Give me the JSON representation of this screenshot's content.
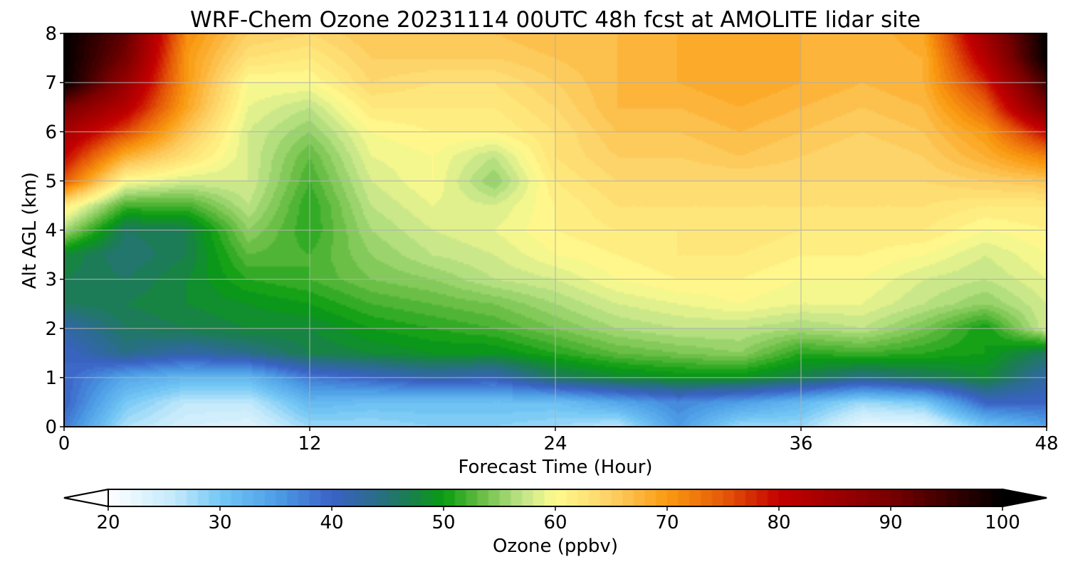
{
  "chart_data": {
    "type": "heatmap",
    "title": "WRF-Chem Ozone  20231114 00UTC 48h fcst at AMOLITE lidar site",
    "xlabel": "Forecast Time (Hour)",
    "ylabel": "Alt AGL (km)",
    "xlim": [
      0,
      48
    ],
    "ylim": [
      0,
      8
    ],
    "x_ticks": [
      0,
      12,
      24,
      36,
      48
    ],
    "y_ticks": [
      0,
      1,
      2,
      3,
      4,
      5,
      6,
      7,
      8
    ],
    "grid": true,
    "x": [
      0,
      3,
      6,
      9,
      12,
      15,
      18,
      21,
      24,
      27,
      30,
      33,
      36,
      39,
      42,
      45,
      48
    ],
    "y": [
      0,
      0.5,
      1,
      1.5,
      2,
      2.5,
      3,
      3.5,
      4,
      4.5,
      5,
      5.5,
      6,
      6.5,
      7,
      7.5,
      8
    ],
    "z": [
      [
        38,
        27,
        24,
        23,
        28,
        28,
        29,
        29,
        28,
        26,
        35,
        28,
        28,
        22,
        22,
        30,
        34
      ],
      [
        40,
        30,
        26,
        26,
        32,
        31,
        31,
        31,
        31,
        34,
        37,
        35,
        32,
        28,
        30,
        40,
        40
      ],
      [
        40,
        34,
        32,
        32,
        38,
        40,
        42,
        41,
        46,
        48,
        49,
        49,
        47,
        44,
        46,
        48,
        42
      ],
      [
        40,
        44,
        42,
        44,
        47,
        48,
        49,
        49,
        51,
        53,
        54,
        55,
        51,
        52,
        51,
        50,
        46
      ],
      [
        42,
        46,
        47,
        48,
        48,
        50,
        51,
        52,
        54,
        56,
        57,
        57,
        56,
        57,
        54,
        50,
        58
      ],
      [
        46,
        47,
        48,
        49,
        50,
        52,
        53,
        54,
        56,
        58,
        59,
        60,
        59,
        59,
        57,
        55,
        58
      ],
      [
        47,
        46,
        48,
        51,
        52,
        54,
        55,
        57,
        58,
        60,
        61,
        61,
        60,
        60,
        58,
        57,
        59
      ],
      [
        48,
        45,
        47,
        53,
        52,
        55,
        57,
        58,
        60,
        61,
        62,
        62,
        61,
        61,
        60,
        58,
        60
      ],
      [
        56,
        46,
        47,
        55,
        51,
        56,
        58,
        59,
        61,
        62,
        62,
        63,
        62,
        62,
        62,
        60,
        61
      ],
      [
        62,
        52,
        52,
        57,
        51,
        57,
        59,
        58,
        61,
        63,
        63,
        63,
        63,
        63,
        63,
        62,
        62
      ],
      [
        75,
        60,
        58,
        58,
        52,
        58,
        60,
        55,
        62,
        64,
        64,
        64,
        64,
        64,
        64,
        65,
        66
      ],
      [
        80,
        68,
        63,
        58,
        53,
        59,
        60,
        57,
        63,
        65,
        65,
        66,
        65,
        64,
        65,
        68,
        72
      ],
      [
        84,
        76,
        66,
        58,
        55,
        60,
        61,
        61,
        63,
        66,
        66,
        67,
        66,
        65,
        66,
        70,
        80
      ],
      [
        90,
        82,
        69,
        59,
        57,
        62,
        62,
        62,
        64,
        67,
        67,
        68,
        67,
        66,
        67,
        74,
        90
      ],
      [
        100,
        86,
        70,
        60,
        60,
        64,
        63,
        63,
        65,
        67,
        68,
        69,
        68,
        67,
        68,
        78,
        95
      ],
      [
        100,
        90,
        70,
        63,
        62,
        65,
        65,
        65,
        66,
        67,
        68,
        69,
        68,
        67,
        68,
        82,
        100
      ],
      [
        100,
        92,
        71,
        65,
        64,
        66,
        66,
        66,
        67,
        67,
        68,
        68,
        68,
        67,
        69,
        85,
        100
      ]
    ],
    "colorbar": {
      "label": "Ozone  (ppbv)",
      "vmin": 20,
      "vmax": 100,
      "ticks": [
        20,
        30,
        40,
        50,
        60,
        70,
        80,
        90,
        100
      ],
      "extend": "both",
      "orientation": "horizontal",
      "placement": "bottom",
      "color_stops": [
        {
          "v": 20,
          "c": "#ffffff"
        },
        {
          "v": 26,
          "c": "#c2e9fb"
        },
        {
          "v": 30,
          "c": "#74c8f5"
        },
        {
          "v": 35,
          "c": "#4d9ee6"
        },
        {
          "v": 40,
          "c": "#3a62c6"
        },
        {
          "v": 44,
          "c": "#2a6d8a"
        },
        {
          "v": 47,
          "c": "#1a7f4e"
        },
        {
          "v": 50,
          "c": "#089c0f"
        },
        {
          "v": 53,
          "c": "#5fba3e"
        },
        {
          "v": 57,
          "c": "#bfe488"
        },
        {
          "v": 60,
          "c": "#fffb8f"
        },
        {
          "v": 65,
          "c": "#fdd065"
        },
        {
          "v": 70,
          "c": "#fa9a10"
        },
        {
          "v": 75,
          "c": "#e55a08"
        },
        {
          "v": 80,
          "c": "#c40000"
        },
        {
          "v": 90,
          "c": "#780000"
        },
        {
          "v": 100,
          "c": "#000000"
        }
      ]
    }
  }
}
